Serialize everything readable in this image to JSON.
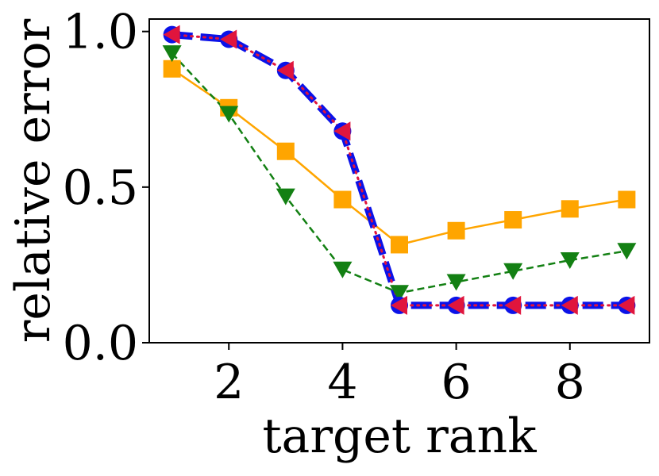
{
  "chart_data": {
    "type": "line",
    "title": "",
    "xlabel": "target rank",
    "ylabel": "relative error",
    "xlim": [
      0.6,
      9.4
    ],
    "ylim": [
      0.0,
      1.04
    ],
    "xticks": [
      2,
      4,
      6,
      8
    ],
    "yticks": [
      0.0,
      0.5,
      1.0
    ],
    "xtick_labels": [
      "2",
      "4",
      "6",
      "8"
    ],
    "ytick_labels": [
      "0.0",
      "0.5",
      "1.0"
    ],
    "grid": false,
    "legend": "none",
    "series": [
      {
        "name": "orange-square-solid",
        "color": "#ffa500",
        "marker": "square",
        "linestyle": "solid",
        "x": [
          1,
          2,
          3,
          4,
          5,
          6,
          7,
          8,
          9
        ],
        "values": [
          0.88,
          0.755,
          0.615,
          0.46,
          0.315,
          0.36,
          0.395,
          0.43,
          0.46
        ]
      },
      {
        "name": "green-triangle-down-dashed",
        "color": "#138013",
        "marker": "triangle-down",
        "linestyle": "dashed",
        "x": [
          1,
          2,
          3,
          4,
          5,
          6,
          7,
          8,
          9
        ],
        "values": [
          0.93,
          0.735,
          0.47,
          0.235,
          0.16,
          0.195,
          0.23,
          0.265,
          0.295
        ]
      },
      {
        "name": "blue-circle-thick-dashed",
        "color": "#0b12e8",
        "marker": "circle",
        "linestyle": "thick-dashed",
        "x": [
          1,
          2,
          3,
          4,
          5,
          6,
          7,
          8,
          9
        ],
        "values": [
          0.99,
          0.975,
          0.875,
          0.68,
          0.12,
          0.12,
          0.12,
          0.12,
          0.12
        ]
      },
      {
        "name": "red-triangle-left-dotted",
        "color": "#e0153d",
        "marker": "triangle-left",
        "linestyle": "dotted",
        "x": [
          1,
          2,
          3,
          4,
          5,
          6,
          7,
          8,
          9
        ],
        "values": [
          0.99,
          0.975,
          0.875,
          0.68,
          0.12,
          0.12,
          0.12,
          0.12,
          0.12
        ]
      }
    ]
  }
}
